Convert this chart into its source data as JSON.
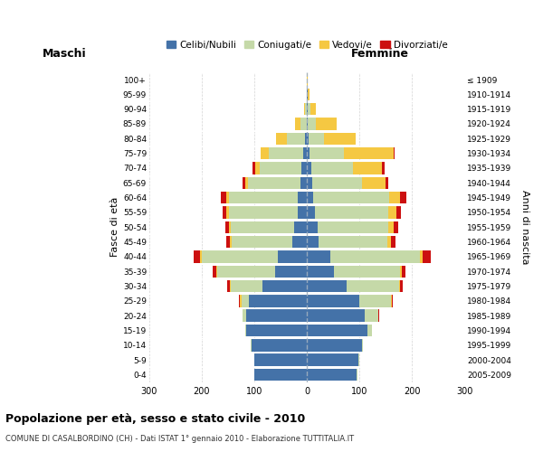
{
  "age_groups": [
    "0-4",
    "5-9",
    "10-14",
    "15-19",
    "20-24",
    "25-29",
    "30-34",
    "35-39",
    "40-44",
    "45-49",
    "50-54",
    "55-59",
    "60-64",
    "65-69",
    "70-74",
    "75-79",
    "80-84",
    "85-89",
    "90-94",
    "95-99",
    "100+"
  ],
  "birth_years": [
    "2005-2009",
    "2000-2004",
    "1995-1999",
    "1990-1994",
    "1985-1989",
    "1980-1984",
    "1975-1979",
    "1970-1974",
    "1965-1969",
    "1960-1964",
    "1955-1959",
    "1950-1954",
    "1945-1949",
    "1940-1944",
    "1935-1939",
    "1930-1934",
    "1925-1929",
    "1920-1924",
    "1915-1919",
    "1910-1914",
    "≤ 1909"
  ],
  "male": {
    "celibi": [
      100,
      100,
      105,
      115,
      115,
      110,
      85,
      60,
      55,
      28,
      25,
      18,
      18,
      12,
      10,
      8,
      3,
      1,
      1,
      0,
      0
    ],
    "coniugati": [
      0,
      0,
      2,
      2,
      8,
      15,
      60,
      110,
      145,
      115,
      120,
      130,
      130,
      100,
      80,
      65,
      35,
      12,
      3,
      1,
      0
    ],
    "vedovi": [
      0,
      0,
      0,
      0,
      0,
      2,
      2,
      2,
      3,
      3,
      3,
      5,
      5,
      5,
      8,
      15,
      20,
      10,
      2,
      0,
      0
    ],
    "divorziati": [
      0,
      0,
      0,
      0,
      0,
      2,
      5,
      8,
      12,
      8,
      8,
      8,
      10,
      5,
      5,
      0,
      0,
      0,
      0,
      0,
      0
    ]
  },
  "female": {
    "nubili": [
      95,
      98,
      105,
      115,
      110,
      100,
      75,
      52,
      45,
      22,
      20,
      15,
      12,
      10,
      8,
      5,
      3,
      2,
      2,
      1,
      0
    ],
    "coniugate": [
      1,
      1,
      2,
      8,
      25,
      60,
      100,
      125,
      170,
      130,
      135,
      140,
      145,
      95,
      80,
      65,
      30,
      15,
      5,
      1,
      0
    ],
    "vedove": [
      0,
      0,
      0,
      0,
      1,
      2,
      2,
      3,
      5,
      8,
      10,
      15,
      20,
      45,
      55,
      95,
      60,
      40,
      10,
      2,
      1
    ],
    "divorziate": [
      0,
      0,
      0,
      0,
      1,
      2,
      5,
      8,
      15,
      8,
      8,
      8,
      12,
      5,
      5,
      2,
      0,
      0,
      0,
      0,
      0
    ]
  },
  "colors": {
    "celibi": "#4472a8",
    "coniugati": "#c5d9a8",
    "vedovi": "#f5c842",
    "divorziati": "#cc1010"
  },
  "xlim": 300,
  "title": "Popolazione per età, sesso e stato civile - 2010",
  "subtitle": "COMUNE DI CASALBORDINO (CH) - Dati ISTAT 1° gennaio 2010 - Elaborazione TUTTITALIA.IT",
  "ylabel_left": "Fasce di età",
  "ylabel_right": "Anni di nascita",
  "xlabel_left": "Maschi",
  "xlabel_right": "Femmine",
  "legend_labels": [
    "Celibi/Nubili",
    "Coniugati/e",
    "Vedovi/e",
    "Divorziati/e"
  ],
  "background_color": "#ffffff",
  "grid_color": "#c8c8c8"
}
